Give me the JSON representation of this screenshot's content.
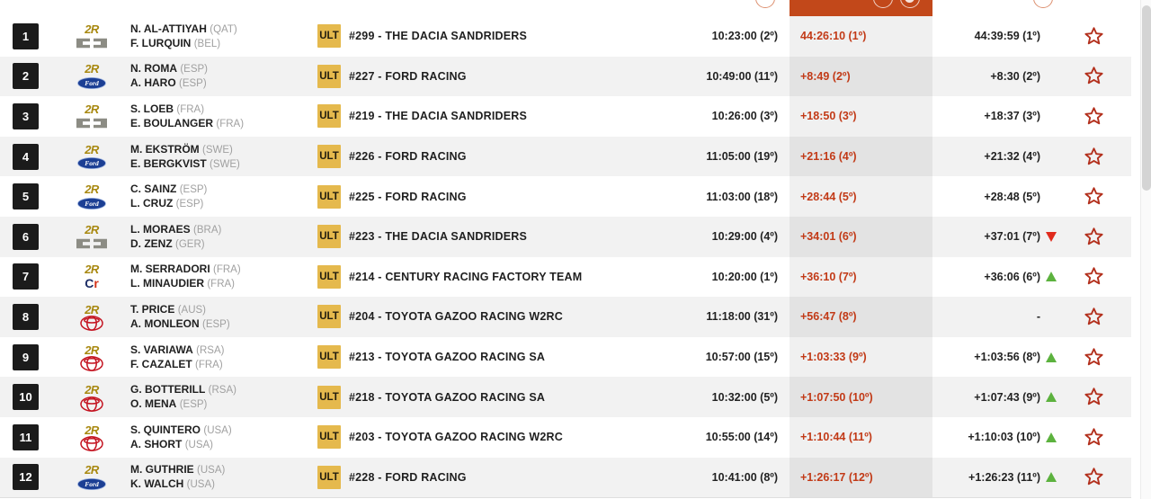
{
  "header": {
    "accent_color": "#c2481a",
    "icons": [
      "info-icon",
      "info-icon",
      "info-icon",
      "info-icon"
    ]
  },
  "colors": {
    "highlight_column_header": "#c2481a",
    "highlight_text": "#c23a17",
    "rank_box": "#1b1b1b",
    "class_badge_bg": "#e5b94d",
    "manufacturer_logo_gold": "#a8880f",
    "trend_up": "#5cb23e",
    "trend_down": "#e02b1d",
    "star_outline": "#b3301d"
  },
  "rows": [
    {
      "rank": "1",
      "brand": "dacia",
      "drivers": [
        {
          "name": "N. AL-ATTIYAH",
          "country": "(QAT)"
        },
        {
          "name": "F. LURQUIN",
          "country": "(BEL)"
        }
      ],
      "class_badge": "ULT",
      "team": "#299 - THE DACIA SANDRIDERS",
      "start_time": "10:23:00 (2º)",
      "stage_time": "44:26:10 (1º)",
      "general_gap": "44:39:59 (1º)",
      "trend": "none"
    },
    {
      "rank": "2",
      "brand": "ford",
      "drivers": [
        {
          "name": "N. ROMA",
          "country": "(ESP)"
        },
        {
          "name": "A. HARO",
          "country": "(ESP)"
        }
      ],
      "class_badge": "ULT",
      "team": "#227 - FORD RACING",
      "start_time": "10:49:00 (11º)",
      "stage_time": "+8:49 (2º)",
      "general_gap": "+8:30 (2º)",
      "trend": "none"
    },
    {
      "rank": "3",
      "brand": "dacia",
      "drivers": [
        {
          "name": "S. LOEB",
          "country": "(FRA)"
        },
        {
          "name": "E. BOULANGER",
          "country": "(FRA)"
        }
      ],
      "class_badge": "ULT",
      "team": "#219 - THE DACIA SANDRIDERS",
      "start_time": "10:26:00 (3º)",
      "stage_time": "+18:50 (3º)",
      "general_gap": "+18:37 (3º)",
      "trend": "none"
    },
    {
      "rank": "4",
      "brand": "ford",
      "drivers": [
        {
          "name": "M. EKSTRÖM",
          "country": "(SWE)"
        },
        {
          "name": "E. BERGKVIST",
          "country": "(SWE)"
        }
      ],
      "class_badge": "ULT",
      "team": "#226 - FORD RACING",
      "start_time": "11:05:00 (19º)",
      "stage_time": "+21:16 (4º)",
      "general_gap": "+21:32 (4º)",
      "trend": "none"
    },
    {
      "rank": "5",
      "brand": "ford",
      "drivers": [
        {
          "name": "C. SAINZ",
          "country": "(ESP)"
        },
        {
          "name": "L. CRUZ",
          "country": "(ESP)"
        }
      ],
      "class_badge": "ULT",
      "team": "#225 - FORD RACING",
      "start_time": "11:03:00 (18º)",
      "stage_time": "+28:44 (5º)",
      "general_gap": "+28:48 (5º)",
      "trend": "none"
    },
    {
      "rank": "6",
      "brand": "dacia",
      "drivers": [
        {
          "name": "L. MORAES",
          "country": "(BRA)"
        },
        {
          "name": "D. ZENZ",
          "country": "(GER)"
        }
      ],
      "class_badge": "ULT",
      "team": "#223 - THE DACIA SANDRIDERS",
      "start_time": "10:29:00 (4º)",
      "stage_time": "+34:01 (6º)",
      "general_gap": "+37:01 (7º)",
      "trend": "down"
    },
    {
      "rank": "7",
      "brand": "century",
      "drivers": [
        {
          "name": "M. SERRADORI",
          "country": "(FRA)"
        },
        {
          "name": "L. MINAUDIER",
          "country": "(FRA)"
        }
      ],
      "class_badge": "ULT",
      "team": "#214 - CENTURY RACING FACTORY TEAM",
      "start_time": "10:20:00 (1º)",
      "stage_time": "+36:10 (7º)",
      "general_gap": "+36:06 (6º)",
      "trend": "up"
    },
    {
      "rank": "8",
      "brand": "toyota",
      "drivers": [
        {
          "name": "T. PRICE",
          "country": "(AUS)"
        },
        {
          "name": "A. MONLEON",
          "country": "(ESP)"
        }
      ],
      "class_badge": "ULT",
      "team": "#204 - TOYOTA GAZOO RACING W2RC",
      "start_time": "11:18:00 (31º)",
      "stage_time": "+56:47 (8º)",
      "general_gap": "-",
      "trend": "none"
    },
    {
      "rank": "9",
      "brand": "toyota",
      "drivers": [
        {
          "name": "S. VARIAWA",
          "country": "(RSA)"
        },
        {
          "name": "F. CAZALET",
          "country": "(FRA)"
        }
      ],
      "class_badge": "ULT",
      "team": "#213 - TOYOTA GAZOO RACING SA",
      "start_time": "10:57:00 (15º)",
      "stage_time": "+1:03:33 (9º)",
      "general_gap": "+1:03:56 (8º)",
      "trend": "up"
    },
    {
      "rank": "10",
      "brand": "toyota",
      "drivers": [
        {
          "name": "G. BOTTERILL",
          "country": "(RSA)"
        },
        {
          "name": "O. MENA",
          "country": "(ESP)"
        }
      ],
      "class_badge": "ULT",
      "team": "#218 - TOYOTA GAZOO RACING SA",
      "start_time": "10:32:00 (5º)",
      "stage_time": "+1:07:50 (10º)",
      "general_gap": "+1:07:43 (9º)",
      "trend": "up"
    },
    {
      "rank": "11",
      "brand": "toyota",
      "drivers": [
        {
          "name": "S. QUINTERO",
          "country": "(USA)"
        },
        {
          "name": "A. SHORT",
          "country": "(USA)"
        }
      ],
      "class_badge": "ULT",
      "team": "#203 - TOYOTA GAZOO RACING W2RC",
      "start_time": "10:55:00 (14º)",
      "stage_time": "+1:10:44 (11º)",
      "general_gap": "+1:10:03 (10º)",
      "trend": "up"
    },
    {
      "rank": "12",
      "brand": "ford",
      "drivers": [
        {
          "name": "M. GUTHRIE",
          "country": "(USA)"
        },
        {
          "name": "K. WALCH",
          "country": "(USA)"
        }
      ],
      "class_badge": "ULT",
      "team": "#228 - FORD RACING",
      "start_time": "10:41:00 (8º)",
      "stage_time": "+1:26:17 (12º)",
      "general_gap": "+1:26:23 (11º)",
      "trend": "up"
    }
  ]
}
